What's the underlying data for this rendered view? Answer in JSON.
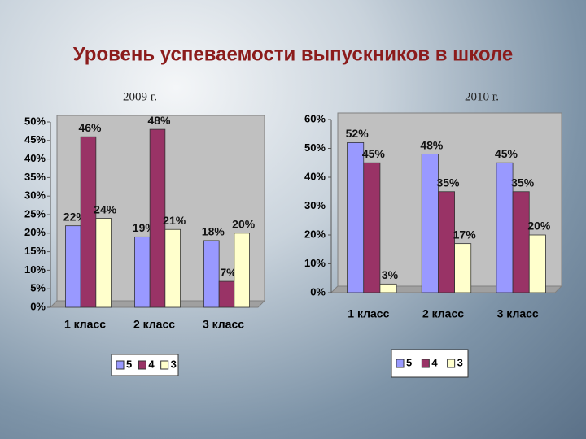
{
  "title": "Уровень успеваемости выпускников в школе",
  "chart_data": [
    {
      "type": "bar",
      "title": "2009 г.",
      "categories": [
        "1 класс",
        "2 класс",
        "3 класс"
      ],
      "series": [
        {
          "name": "5",
          "color": "#9999ff",
          "values": [
            22,
            19,
            18
          ],
          "value_labels": [
            "22%",
            "19%",
            "18%"
          ]
        },
        {
          "name": "4",
          "color": "#993366",
          "values": [
            46,
            48,
            7
          ],
          "value_labels": [
            "46%",
            "48%",
            "7%"
          ]
        },
        {
          "name": "3",
          "color": "#ffffcc",
          "values": [
            24,
            21,
            20
          ],
          "value_labels": [
            "24%",
            "21%",
            "20%"
          ]
        }
      ],
      "ylim": [
        0,
        50
      ],
      "yticks": [
        {
          "value": 0,
          "label": "0%"
        },
        {
          "value": 5,
          "label": "5%"
        },
        {
          "value": 10,
          "label": "10%"
        },
        {
          "value": 15,
          "label": "15%"
        },
        {
          "value": 20,
          "label": "20%"
        },
        {
          "value": 25,
          "label": "25%"
        },
        {
          "value": 30,
          "label": "30%"
        },
        {
          "value": 35,
          "label": "35%"
        },
        {
          "value": 40,
          "label": "40%"
        },
        {
          "value": 45,
          "label": "45%"
        },
        {
          "value": 50,
          "label": "50%"
        }
      ],
      "grid": false,
      "legend": "bottom"
    },
    {
      "type": "bar",
      "title": "2010 г.",
      "categories": [
        "1 класс",
        "2 класс",
        "3 класс"
      ],
      "series": [
        {
          "name": "5",
          "color": "#9999ff",
          "values": [
            52,
            48,
            45
          ],
          "value_labels": [
            "52%",
            "48%",
            "45%"
          ]
        },
        {
          "name": "4",
          "color": "#993366",
          "values": [
            45,
            35,
            35
          ],
          "value_labels": [
            "45%",
            "35%",
            "35%"
          ]
        },
        {
          "name": "3",
          "color": "#ffffcc",
          "values": [
            3,
            17,
            20
          ],
          "value_labels": [
            "3%",
            "17%",
            "20%"
          ]
        }
      ],
      "ylim": [
        0,
        60
      ],
      "yticks": [
        {
          "value": 0,
          "label": "0%"
        },
        {
          "value": 10,
          "label": "10%"
        },
        {
          "value": 20,
          "label": "20%"
        },
        {
          "value": 30,
          "label": "30%"
        },
        {
          "value": 40,
          "label": "40%"
        },
        {
          "value": 50,
          "label": "50%"
        },
        {
          "value": 60,
          "label": "60%"
        }
      ],
      "grid": false,
      "legend": "bottom"
    }
  ]
}
